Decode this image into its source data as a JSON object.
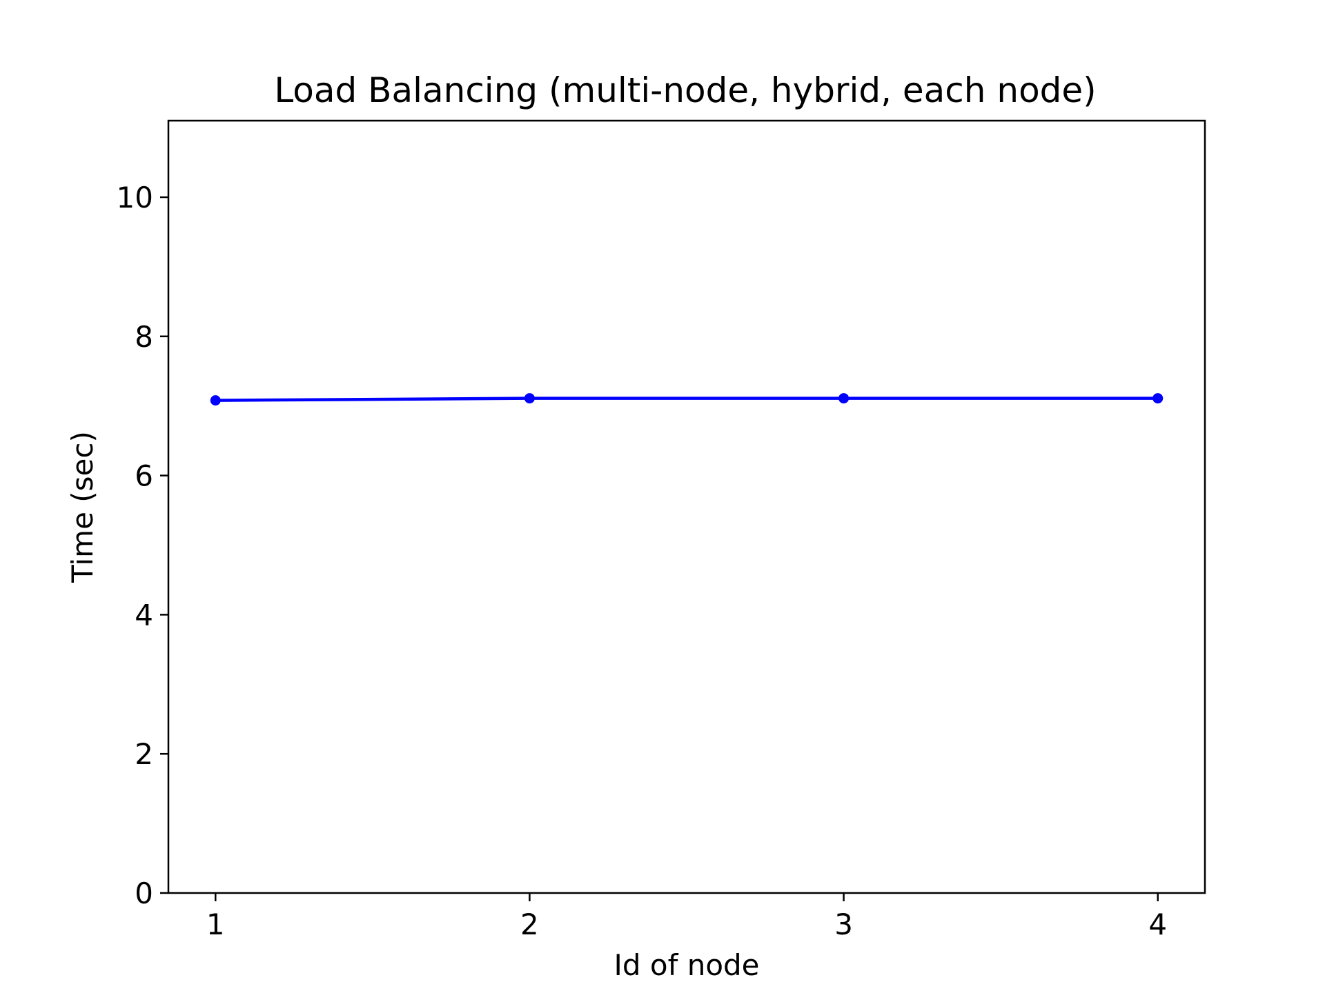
{
  "chart_data": {
    "type": "line",
    "title": "Load Balancing (multi-node, hybrid, each node)",
    "xlabel": "Id of node",
    "ylabel": "Time (sec)",
    "x": [
      1,
      2,
      3,
      4
    ],
    "x_ticks": [
      "1",
      "2",
      "3",
      "4"
    ],
    "xlim": [
      0.85,
      4.15
    ],
    "ylim": [
      0,
      11.1
    ],
    "y_ticks": [
      "0",
      "2",
      "4",
      "6",
      "8",
      "10"
    ],
    "grid": false,
    "series": [
      {
        "values": [
          7.08,
          7.11,
          7.11,
          7.11
        ],
        "color": "#0000ff",
        "marker": "circle"
      }
    ]
  }
}
